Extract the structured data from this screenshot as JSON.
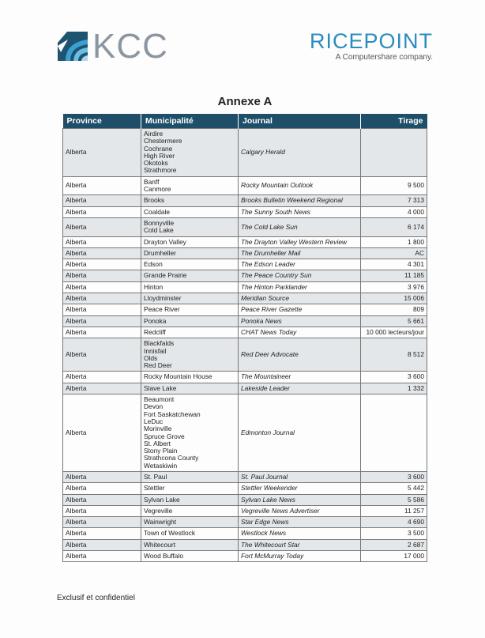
{
  "logos": {
    "left": "KCC",
    "right": "RICEPOINT",
    "right_tagline": "A Computershare company."
  },
  "title": "Annexe A",
  "table": {
    "headers": [
      "Province",
      "Municipalité",
      "Journal",
      "Tirage"
    ],
    "rows": [
      {
        "province": "Alberta",
        "municipalites": [
          "Airdire",
          "Chestermere",
          "Cochrane",
          "High River",
          "Okotoks",
          "Strathmore"
        ],
        "journal": "Calgary Herald",
        "tirage": ""
      },
      {
        "province": "Alberta",
        "municipalites": [
          "Banff",
          "Canmore"
        ],
        "journal": "Rocky Mountain Outlook",
        "tirage": "9 500"
      },
      {
        "province": "Alberta",
        "municipalites": [
          "Brooks"
        ],
        "journal": "Brooks Bulletin Weekend Regional",
        "tirage": "7 313"
      },
      {
        "province": "Alberta",
        "municipalites": [
          "Coaldale"
        ],
        "journal": "The Sunny South News",
        "tirage": "4 000"
      },
      {
        "province": "Alberta",
        "municipalites": [
          "Bonnyville",
          "Cold Lake"
        ],
        "journal": "The Cold Lake Sun",
        "tirage": "6 174"
      },
      {
        "province": "Alberta",
        "municipalites": [
          "Drayton Valley"
        ],
        "journal": "The Drayton Valley Western Review",
        "tirage": "1 800"
      },
      {
        "province": "Alberta",
        "municipalites": [
          "Drumheller"
        ],
        "journal": "The Drumheller Mail",
        "tirage": "AC"
      },
      {
        "province": "Alberta",
        "municipalites": [
          "Edson"
        ],
        "journal": "The Edson Leader",
        "tirage": "4 301"
      },
      {
        "province": "Alberta",
        "municipalites": [
          "Grande Prairie"
        ],
        "journal": "The Peace Country Sun",
        "tirage": "11 185"
      },
      {
        "province": "Alberta",
        "municipalites": [
          "Hinton"
        ],
        "journal": "The Hinton Parklander",
        "tirage": "3 976"
      },
      {
        "province": "Alberta",
        "municipalites": [
          "Lloydminster"
        ],
        "journal": "Meridian Source",
        "tirage": "15 006"
      },
      {
        "province": "Alberta",
        "municipalites": [
          "Peace River"
        ],
        "journal": "Peace River Gazette",
        "tirage": "809"
      },
      {
        "province": "Alberta",
        "municipalites": [
          "Ponoka"
        ],
        "journal": "Ponoka News",
        "tirage": "5 661"
      },
      {
        "province": "Alberta",
        "municipalites": [
          "Redcliff"
        ],
        "journal": "CHAT News Today",
        "tirage": "10 000 lecteurs/jour"
      },
      {
        "province": "Alberta",
        "municipalites": [
          "Blackfalds",
          "Innisfail",
          "Olds",
          "Red Deer"
        ],
        "journal": "Red Deer Advocate",
        "tirage": "8 512"
      },
      {
        "province": "Alberta",
        "municipalites": [
          "Rocky Mountain House"
        ],
        "journal": "The Mountaineer",
        "tirage": "3 600"
      },
      {
        "province": "Alberta",
        "municipalites": [
          "Slave Lake"
        ],
        "journal": "Lakeside Leader",
        "tirage": "1 332"
      },
      {
        "province": "Alberta",
        "municipalites": [
          "Beaumont",
          "Devon",
          "Fort Saskatchewan",
          "LeDuc",
          "Morinville",
          "Spruce Grove",
          "St. Albert",
          "Stony Plain",
          "Strathcona County",
          "Wetaskiwin"
        ],
        "journal": "Edmonton Journal",
        "tirage": ""
      },
      {
        "province": "Alberta",
        "municipalites": [
          "St. Paul"
        ],
        "journal": "St. Paul Journal",
        "tirage": "3 600"
      },
      {
        "province": "Alberta",
        "municipalites": [
          "Stettler"
        ],
        "journal": "Stettler Weekender",
        "tirage": "5 442"
      },
      {
        "province": "Alberta",
        "municipalites": [
          "Sylvan Lake"
        ],
        "journal": "Sylvan Lake News",
        "tirage": "5 586"
      },
      {
        "province": "Alberta",
        "municipalites": [
          "Vegreville"
        ],
        "journal": "Vegreville News Advertiser",
        "tirage": "11 257"
      },
      {
        "province": "Alberta",
        "municipalites": [
          "Wainwright"
        ],
        "journal": "Star Edge News",
        "tirage": "4 690"
      },
      {
        "province": "Alberta",
        "municipalites": [
          "Town of Westlock"
        ],
        "journal": "Westlock News",
        "tirage": "3 500"
      },
      {
        "province": "Alberta",
        "municipalites": [
          "Whitecourt"
        ],
        "journal": "The Whitecourt Star",
        "tirage": "2 687"
      },
      {
        "province": "Alberta",
        "municipalites": [
          "Wood Buffalo"
        ],
        "journal": "Fort McMurray Today",
        "tirage": "17 000"
      }
    ]
  },
  "footer": "Exclusif et confidentiel",
  "colors": {
    "header_bg": "#1f4e68",
    "kcc_gray": "#8c96a0",
    "ricepoint_blue": "#2a8cbe",
    "row_shade": "#e3e7ea"
  }
}
